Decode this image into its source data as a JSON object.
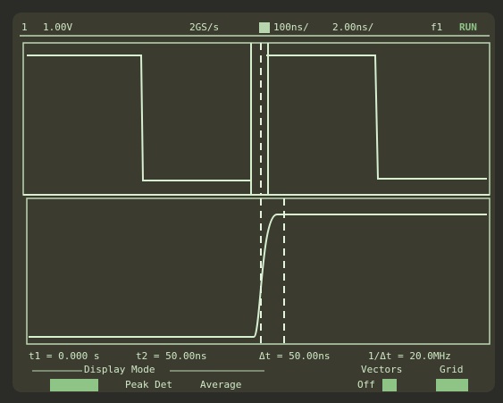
{
  "status_bar": {
    "channel": "1",
    "scale": "1.00V",
    "sample_rate": "2GS/s",
    "main_timebase": "100ns/",
    "zoom_timebase": "2.00ns/",
    "trigger": "f1",
    "run_state": "RUN"
  },
  "cursor_bar": {
    "t1": "t1 = 0.000 s",
    "t2": "t2 = 50.00ns",
    "delta_t": "Δt = 50.00ns",
    "inverse_delta_t": "1/Δt = 20.0MHz"
  },
  "menu": {
    "display_mode_title": "Display Mode",
    "peak_det": "Peak Det",
    "average": "Average",
    "vectors_title": "Vectors",
    "vectors_off": "Off",
    "grid_title": "Grid"
  }
}
